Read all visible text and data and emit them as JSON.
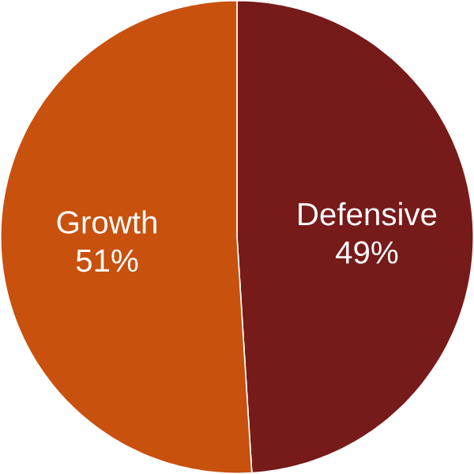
{
  "chart_data": {
    "type": "pie",
    "categories": [
      "Defensive",
      "Growth"
    ],
    "values": [
      49,
      51
    ],
    "colors": [
      "#771a1a",
      "#c8510e"
    ],
    "value_labels": [
      "49%",
      "51%"
    ]
  }
}
